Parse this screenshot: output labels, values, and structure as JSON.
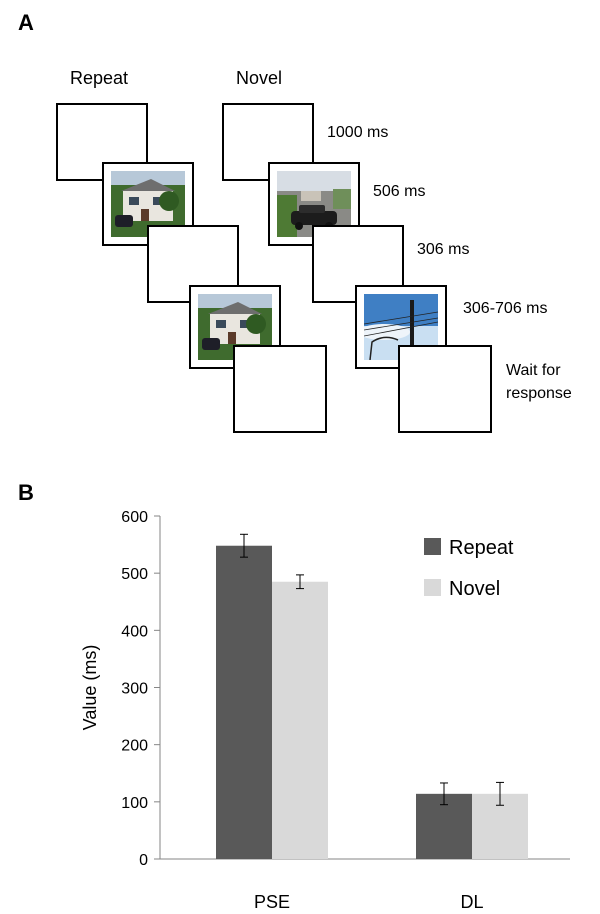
{
  "panel_a": {
    "label": "A",
    "columns": {
      "repeat": "Repeat",
      "novel": "Novel"
    },
    "timings": [
      "1000 ms",
      "506 ms",
      "306 ms",
      "306-706 ms",
      "Wait for response"
    ],
    "photos": {
      "repeat_1": "house-photo-icon",
      "repeat_2": "house-photo-icon",
      "novel_1": "street-car-photo-icon",
      "novel_2": "telegraph-pole-photo-icon"
    }
  },
  "panel_b": {
    "label": "B"
  },
  "chart_data": {
    "type": "bar",
    "categories": [
      "PSE",
      "DL"
    ],
    "series": [
      {
        "name": "Repeat",
        "color": "#595959",
        "values": [
          548,
          114
        ],
        "errors": [
          20,
          19
        ]
      },
      {
        "name": "Novel",
        "color": "#d9d9d9",
        "values": [
          485,
          114
        ],
        "errors": [
          12,
          20
        ]
      }
    ],
    "ylabel": "Value (ms)",
    "xlabel": "",
    "ylim": [
      0,
      600
    ],
    "yticks": [
      0,
      100,
      200,
      300,
      400,
      500,
      600
    ],
    "grid": false,
    "legend_position": "top-right"
  }
}
